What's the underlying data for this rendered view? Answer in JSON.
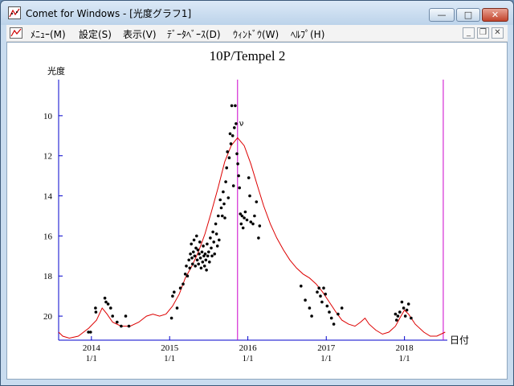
{
  "window": {
    "title": "Comet for Windows - [光度グラフ1]",
    "caption_buttons": {
      "minimize": "—",
      "maximize": "□",
      "close": "✕"
    }
  },
  "menu": {
    "items": [
      "ﾒﾆｭｰ(M)",
      "設定(S)",
      "表示(V)",
      "ﾃﾞｰﾀﾍﾞｰｽ(D)",
      "ｳｨﾝﾄﾞｳ(W)",
      "ﾍﾙﾌﾟ(H)"
    ],
    "mdi_buttons": {
      "minimize": "_",
      "restore": "❐",
      "close": "✕"
    }
  },
  "chart_data": {
    "type": "scatter",
    "title": "10P/Tempel 2",
    "ylabel": "光度",
    "xlabel": "日付",
    "y_inverted": true,
    "ylim": [
      21.2,
      8.2
    ],
    "xlim": [
      "2013-08-01",
      "2018-07-20"
    ],
    "y_ticks": [
      10,
      12,
      14,
      16,
      18,
      20
    ],
    "x_ticks": [
      {
        "date": "2014-01-01",
        "year": "2014",
        "day": "1/1"
      },
      {
        "date": "2015-01-01",
        "year": "2015",
        "day": "1/1"
      },
      {
        "date": "2016-01-01",
        "year": "2016",
        "day": "1/1"
      },
      {
        "date": "2017-01-01",
        "year": "2017",
        "day": "1/1"
      },
      {
        "date": "2018-01-01",
        "year": "2018",
        "day": "1/1"
      }
    ],
    "vertical_markers": [
      {
        "date": "2015-11-14",
        "label": "ν",
        "color": "#cc00cc"
      },
      {
        "date": "2018-07-01",
        "label": "",
        "color": "#cc00cc"
      }
    ],
    "curve_color": "#dd0000",
    "point_color": "#000000",
    "predicted_curve": [
      [
        "2013-08-01",
        20.8
      ],
      [
        "2013-08-20",
        21.0
      ],
      [
        "2013-09-20",
        21.1
      ],
      [
        "2013-11-01",
        21.0
      ],
      [
        "2013-12-20",
        20.6
      ],
      [
        "2014-01-25",
        20.2
      ],
      [
        "2014-02-20",
        19.6
      ],
      [
        "2014-03-15",
        19.9
      ],
      [
        "2014-04-10",
        20.3
      ],
      [
        "2014-05-20",
        20.5
      ],
      [
        "2014-07-01",
        20.5
      ],
      [
        "2014-08-10",
        20.3
      ],
      [
        "2014-09-15",
        20.0
      ],
      [
        "2014-10-15",
        19.9
      ],
      [
        "2014-11-15",
        20.0
      ],
      [
        "2014-12-15",
        19.9
      ],
      [
        "2015-01-15",
        19.5
      ],
      [
        "2015-02-15",
        18.9
      ],
      [
        "2015-03-15",
        18.1
      ],
      [
        "2015-04-15",
        17.5
      ],
      [
        "2015-05-15",
        16.8
      ],
      [
        "2015-06-15",
        15.9
      ],
      [
        "2015-07-15",
        14.8
      ],
      [
        "2015-08-15",
        13.6
      ],
      [
        "2015-09-15",
        12.3
      ],
      [
        "2015-10-15",
        11.5
      ],
      [
        "2015-11-14",
        11.1
      ],
      [
        "2015-12-15",
        11.5
      ],
      [
        "2016-01-15",
        12.4
      ],
      [
        "2016-02-15",
        13.5
      ],
      [
        "2016-03-15",
        14.5
      ],
      [
        "2016-04-15",
        15.4
      ],
      [
        "2016-05-15",
        16.1
      ],
      [
        "2016-06-15",
        16.7
      ],
      [
        "2016-07-15",
        17.2
      ],
      [
        "2016-08-15",
        17.6
      ],
      [
        "2016-09-15",
        17.9
      ],
      [
        "2016-10-15",
        18.1
      ],
      [
        "2016-11-15",
        18.4
      ],
      [
        "2016-12-15",
        18.8
      ],
      [
        "2017-01-15",
        19.3
      ],
      [
        "2017-02-15",
        19.8
      ],
      [
        "2017-03-15",
        20.2
      ],
      [
        "2017-04-15",
        20.4
      ],
      [
        "2017-05-15",
        20.5
      ],
      [
        "2017-06-10",
        20.3
      ],
      [
        "2017-07-01",
        20.1
      ],
      [
        "2017-07-20",
        20.4
      ],
      [
        "2017-08-20",
        20.7
      ],
      [
        "2017-09-20",
        20.9
      ],
      [
        "2017-10-20",
        20.8
      ],
      [
        "2017-11-20",
        20.5
      ],
      [
        "2017-12-10",
        20.1
      ],
      [
        "2018-01-01",
        19.7
      ],
      [
        "2018-01-20",
        19.9
      ],
      [
        "2018-02-20",
        20.4
      ],
      [
        "2018-04-01",
        20.8
      ],
      [
        "2018-05-01",
        21.0
      ],
      [
        "2018-06-01",
        21.0
      ],
      [
        "2018-07-10",
        20.8
      ]
    ],
    "observations": [
      [
        "2013-12-18",
        20.8
      ],
      [
        "2013-12-28",
        20.8
      ],
      [
        "2014-01-20",
        19.6
      ],
      [
        "2014-01-22",
        19.8
      ],
      [
        "2014-03-05",
        19.1
      ],
      [
        "2014-03-10",
        19.3
      ],
      [
        "2014-03-20",
        19.4
      ],
      [
        "2014-04-01",
        19.6
      ],
      [
        "2014-04-10",
        20.0
      ],
      [
        "2014-05-01",
        20.3
      ],
      [
        "2014-05-20",
        20.5
      ],
      [
        "2014-06-10",
        20.0
      ],
      [
        "2014-06-25",
        20.5
      ],
      [
        "2015-01-10",
        20.1
      ],
      [
        "2015-01-15",
        19.0
      ],
      [
        "2015-01-22",
        18.8
      ],
      [
        "2015-02-05",
        19.6
      ],
      [
        "2015-02-20",
        18.6
      ],
      [
        "2015-03-05",
        18.4
      ],
      [
        "2015-03-15",
        17.9
      ],
      [
        "2015-03-20",
        17.5
      ],
      [
        "2015-03-25",
        18.0
      ],
      [
        "2015-04-01",
        17.2
      ],
      [
        "2015-04-05",
        17.6
      ],
      [
        "2015-04-08",
        16.9
      ],
      [
        "2015-04-12",
        16.4
      ],
      [
        "2015-04-15",
        17.1
      ],
      [
        "2015-04-18",
        17.4
      ],
      [
        "2015-04-22",
        16.8
      ],
      [
        "2015-04-25",
        16.2
      ],
      [
        "2015-04-28",
        17.0
      ],
      [
        "2015-05-01",
        17.5
      ],
      [
        "2015-05-04",
        16.6
      ],
      [
        "2015-05-07",
        16.0
      ],
      [
        "2015-05-10",
        17.2
      ],
      [
        "2015-05-13",
        16.7
      ],
      [
        "2015-05-16",
        17.4
      ],
      [
        "2015-05-19",
        16.9
      ],
      [
        "2015-05-22",
        16.3
      ],
      [
        "2015-05-25",
        17.1
      ],
      [
        "2015-05-28",
        17.6
      ],
      [
        "2015-06-01",
        16.8
      ],
      [
        "2015-06-04",
        17.3
      ],
      [
        "2015-06-07",
        16.5
      ],
      [
        "2015-06-10",
        17.0
      ],
      [
        "2015-06-13",
        17.5
      ],
      [
        "2015-06-16",
        16.9
      ],
      [
        "2015-06-19",
        17.2
      ],
      [
        "2015-06-22",
        17.7
      ],
      [
        "2015-06-25",
        16.4
      ],
      [
        "2015-06-28",
        17.0
      ],
      [
        "2015-07-02",
        16.8
      ],
      [
        "2015-07-06",
        17.3
      ],
      [
        "2015-07-10",
        16.1
      ],
      [
        "2015-07-14",
        16.6
      ],
      [
        "2015-07-18",
        17.0
      ],
      [
        "2015-07-22",
        15.8
      ],
      [
        "2015-07-26",
        16.3
      ],
      [
        "2015-07-30",
        16.9
      ],
      [
        "2015-08-04",
        15.4
      ],
      [
        "2015-08-08",
        15.9
      ],
      [
        "2015-08-12",
        16.5
      ],
      [
        "2015-08-16",
        15.0
      ],
      [
        "2015-08-20",
        16.2
      ],
      [
        "2015-08-25",
        14.2
      ],
      [
        "2015-08-30",
        14.6
      ],
      [
        "2015-09-04",
        15.0
      ],
      [
        "2015-09-08",
        13.8
      ],
      [
        "2015-09-12",
        14.4
      ],
      [
        "2015-09-16",
        15.1
      ],
      [
        "2015-09-20",
        13.3
      ],
      [
        "2015-09-24",
        12.6
      ],
      [
        "2015-09-28",
        11.8
      ],
      [
        "2015-10-02",
        14.1
      ],
      [
        "2015-10-06",
        12.1
      ],
      [
        "2015-10-10",
        10.9
      ],
      [
        "2015-10-14",
        11.4
      ],
      [
        "2015-10-18",
        9.5
      ],
      [
        "2015-10-22",
        11.0
      ],
      [
        "2015-10-26",
        13.5
      ],
      [
        "2015-10-30",
        10.6
      ],
      [
        "2015-11-03",
        9.5
      ],
      [
        "2015-11-07",
        10.4
      ],
      [
        "2015-11-11",
        11.9
      ],
      [
        "2015-11-15",
        12.4
      ],
      [
        "2015-11-19",
        13.0
      ],
      [
        "2015-11-23",
        13.6
      ],
      [
        "2015-11-27",
        14.9
      ],
      [
        "2015-12-01",
        15.4
      ],
      [
        "2015-12-05",
        15.0
      ],
      [
        "2015-12-10",
        15.6
      ],
      [
        "2015-12-15",
        15.1
      ],
      [
        "2015-12-20",
        14.8
      ],
      [
        "2015-12-28",
        15.2
      ],
      [
        "2016-01-05",
        13.1
      ],
      [
        "2016-01-10",
        14.0
      ],
      [
        "2016-01-15",
        15.3
      ],
      [
        "2016-01-25",
        15.4
      ],
      [
        "2016-02-01",
        15.0
      ],
      [
        "2016-02-10",
        14.3
      ],
      [
        "2016-02-20",
        16.1
      ],
      [
        "2016-02-25",
        15.5
      ],
      [
        "2016-09-05",
        18.5
      ],
      [
        "2016-09-25",
        19.2
      ],
      [
        "2016-10-15",
        19.6
      ],
      [
        "2016-10-25",
        20.0
      ],
      [
        "2016-11-20",
        18.8
      ],
      [
        "2016-11-28",
        18.6
      ],
      [
        "2016-12-05",
        19.0
      ],
      [
        "2016-12-12",
        19.3
      ],
      [
        "2016-12-20",
        18.6
      ],
      [
        "2016-12-28",
        18.9
      ],
      [
        "2017-01-05",
        19.5
      ],
      [
        "2017-01-15",
        19.8
      ],
      [
        "2017-01-25",
        20.1
      ],
      [
        "2017-02-05",
        20.4
      ],
      [
        "2017-02-25",
        19.9
      ],
      [
        "2017-03-15",
        19.6
      ],
      [
        "2017-11-20",
        19.9
      ],
      [
        "2017-11-25",
        20.2
      ],
      [
        "2017-12-01",
        20.0
      ],
      [
        "2017-12-10",
        19.8
      ],
      [
        "2017-12-20",
        19.3
      ],
      [
        "2017-12-28",
        19.6
      ],
      [
        "2018-01-05",
        20.0
      ],
      [
        "2018-01-12",
        19.7
      ],
      [
        "2018-01-20",
        19.4
      ],
      [
        "2018-02-01",
        20.1
      ]
    ]
  }
}
